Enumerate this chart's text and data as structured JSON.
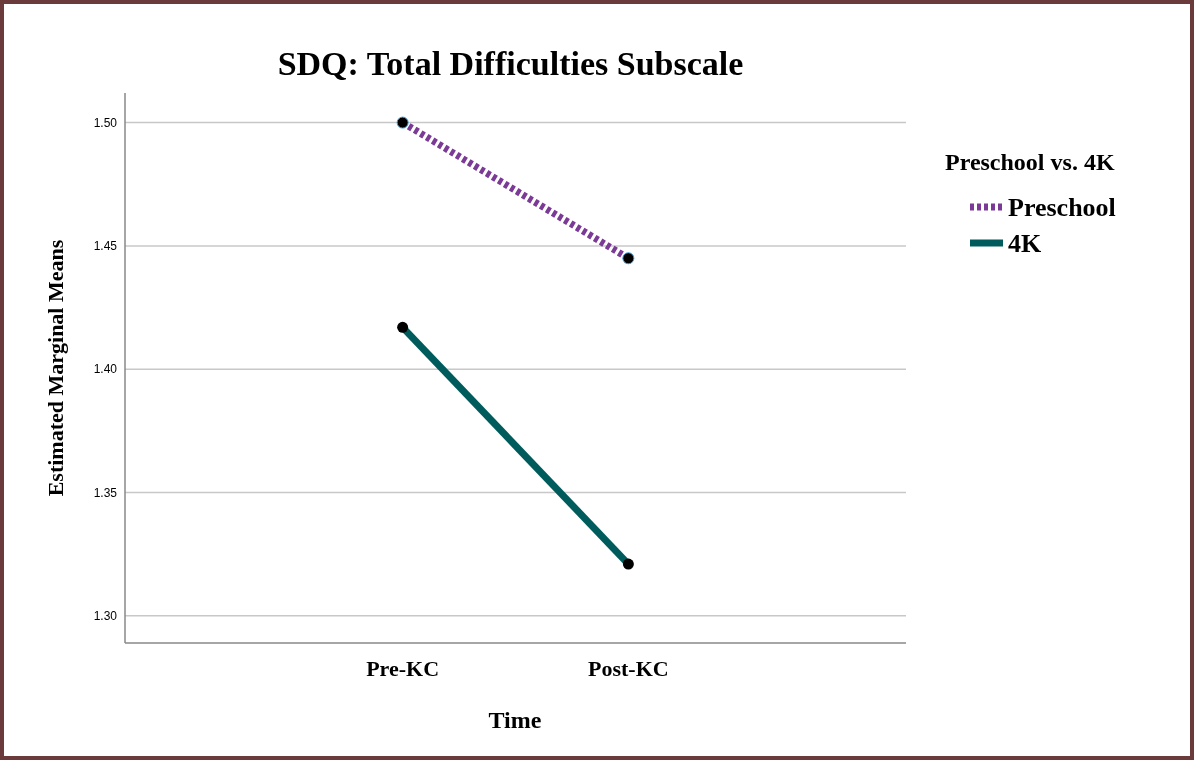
{
  "chart_data": {
    "type": "line",
    "title": "SDQ: Total Difficulties Subscale",
    "xlabel": "Time",
    "ylabel": "Estimated Marginal Means",
    "legend_title": "Preschool vs. 4K",
    "categories": [
      "Pre-KC",
      "Post-KC"
    ],
    "series": [
      {
        "name": "Preschool",
        "color": "#7b3a96",
        "values": [
          1.5,
          1.445
        ],
        "line_style": "dotted"
      },
      {
        "name": "4K",
        "color": "#005c5c",
        "values": [
          1.417,
          1.321
        ],
        "line_style": "solid"
      }
    ],
    "ylim": [
      1.289,
      1.512
    ],
    "yticks": [
      {
        "value": 1.3,
        "label": "1.30"
      },
      {
        "value": 1.35,
        "label": "1.35"
      },
      {
        "value": 1.4,
        "label": "1.40"
      },
      {
        "value": 1.45,
        "label": "1.45"
      },
      {
        "value": 1.5,
        "label": "1.50"
      }
    ],
    "grid": "y",
    "legend": "right",
    "marker": "circle"
  }
}
